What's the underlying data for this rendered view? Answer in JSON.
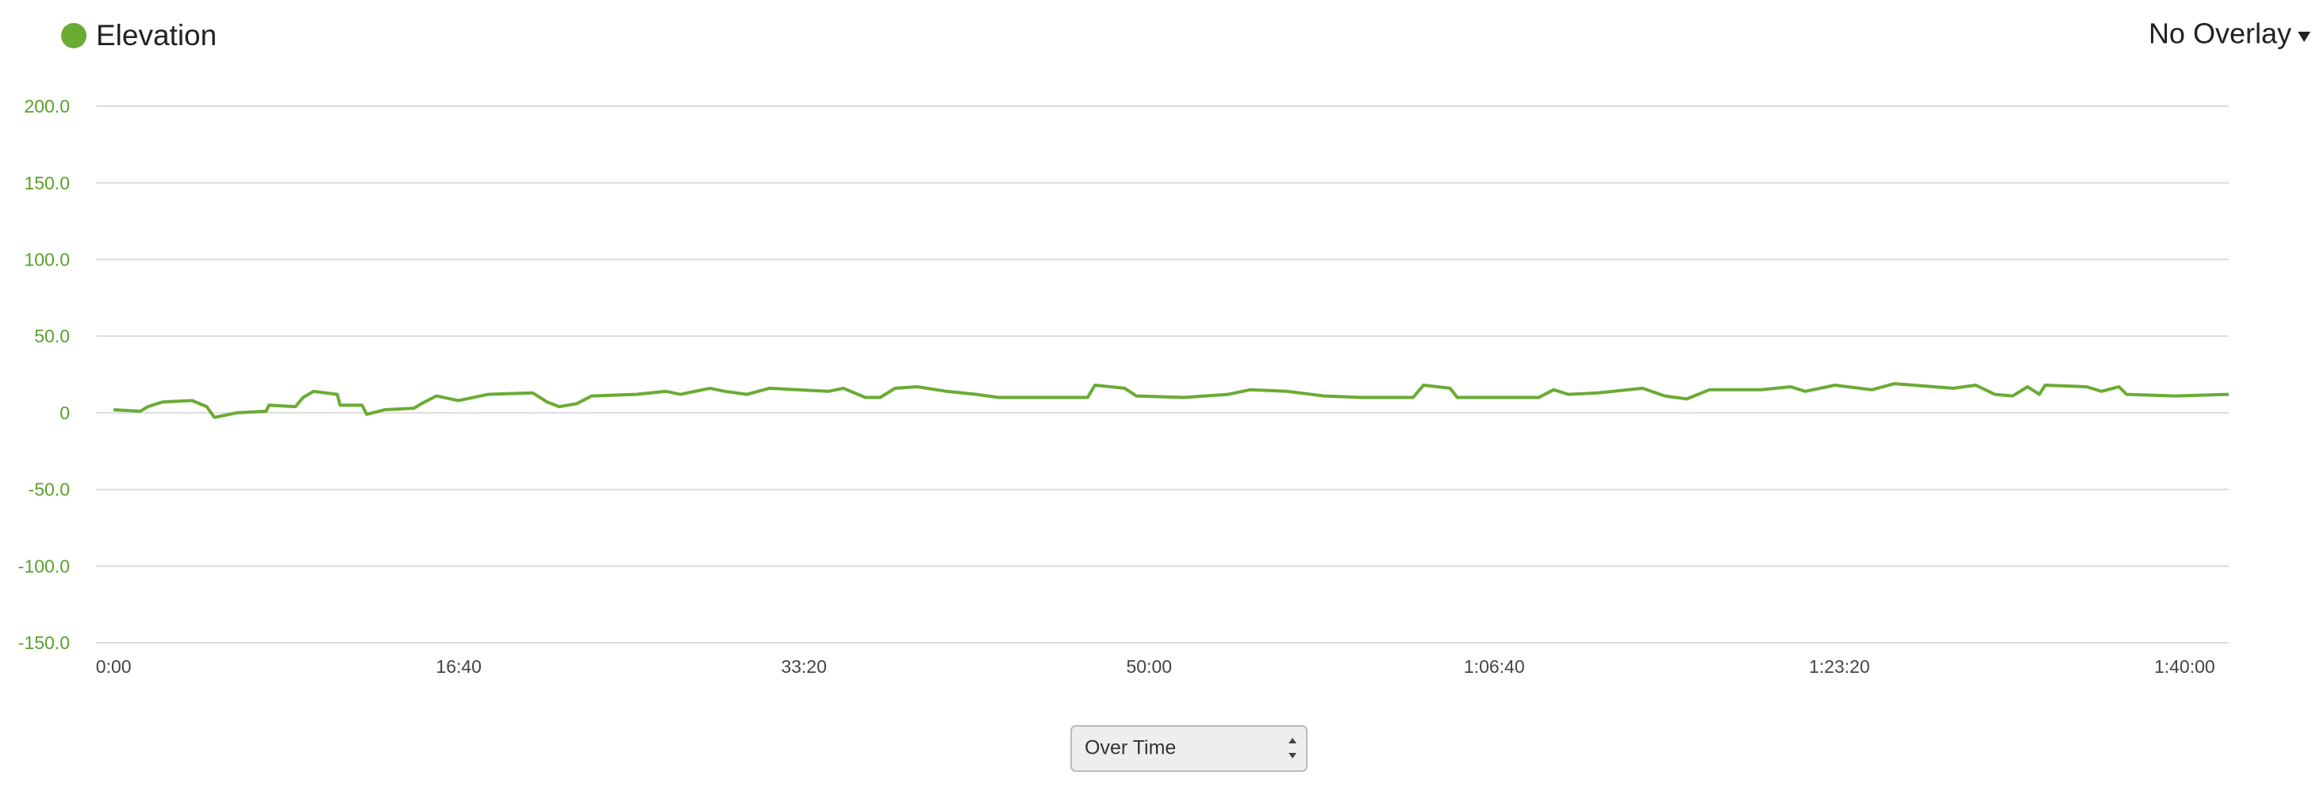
{
  "chart_data": {
    "type": "line",
    "overlay_label": "No Overlay",
    "selector_label": "Over Time",
    "x": [
      0,
      77,
      99,
      141,
      227,
      270,
      292,
      356,
      442,
      450,
      527,
      549,
      579,
      648,
      656,
      720,
      733,
      785,
      870,
      892,
      935,
      999,
      1085,
      1214,
      1256,
      1291,
      1342,
      1385,
      1514,
      1600,
      1642,
      1728,
      1771,
      1835,
      1900,
      2071,
      2114,
      2178,
      2221,
      2264,
      2328,
      2414,
      2500,
      2564,
      2672,
      2822,
      2843,
      2929,
      2963,
      3100,
      3229,
      3293,
      3400,
      3507,
      3615,
      3765,
      3795,
      3872,
      3893,
      4129,
      4172,
      4215,
      4301,
      4430,
      4494,
      4558,
      4623,
      4773,
      4859,
      4901,
      4987,
      5094,
      5159,
      5330,
      5395,
      5450,
      5502,
      5545,
      5579,
      5596,
      5716,
      5759,
      5810,
      5832,
      5973,
      6128
    ],
    "series": [
      {
        "name": "Elevation",
        "color": "#6aab34",
        "values": [
          2,
          1,
          4,
          7,
          8,
          4,
          -3,
          0,
          1,
          5,
          4,
          10,
          14,
          12,
          5,
          5,
          -1,
          2,
          3,
          6,
          11,
          8,
          12,
          13,
          7,
          4,
          6,
          11,
          12,
          14,
          12,
          16,
          14,
          12,
          16,
          14,
          16,
          10,
          10,
          16,
          17,
          14,
          12,
          10,
          10,
          10,
          18,
          16,
          11,
          10,
          12,
          15,
          14,
          11,
          10,
          10,
          18,
          16,
          10,
          10,
          15,
          12,
          13,
          16,
          11,
          9,
          15,
          15,
          17,
          14,
          18,
          15,
          19,
          16,
          18,
          12,
          11,
          17,
          12,
          18,
          17,
          14,
          17,
          12,
          11,
          12
        ]
      }
    ],
    "xlim": [
      -51,
      6128
    ],
    "ylim": [
      -150,
      200
    ],
    "yticks": [
      {
        "value": 200,
        "label": "200.0"
      },
      {
        "value": 150,
        "label": "150.0"
      },
      {
        "value": 100,
        "label": "100.0"
      },
      {
        "value": 50,
        "label": "50.0"
      },
      0,
      {
        "value": -50,
        "label": "-50.0"
      },
      {
        "value": -100,
        "label": "-100.0"
      },
      {
        "value": -150,
        "label": "-150.0"
      }
    ],
    "xticks": [
      {
        "value": 0,
        "label": "0:00"
      },
      {
        "value": 1000,
        "label": "16:40"
      },
      {
        "value": 2000,
        "label": "33:20"
      },
      {
        "value": 3000,
        "label": "50:00"
      },
      {
        "value": 4000,
        "label": "1:06:40"
      },
      {
        "value": 5000,
        "label": "1:23:20"
      },
      {
        "value": 6000,
        "label": "1:40:00"
      }
    ],
    "grid": true,
    "tick_color": "#5aa02c"
  }
}
